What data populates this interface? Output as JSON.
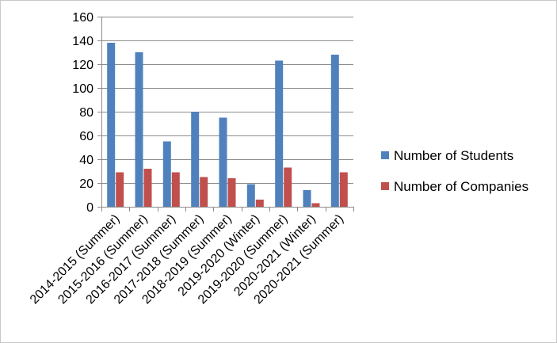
{
  "chart_data": {
    "type": "bar",
    "title": "",
    "xlabel": "",
    "ylabel": "",
    "ylim": [
      0,
      160
    ],
    "yticks": [
      0,
      20,
      40,
      60,
      80,
      100,
      120,
      140,
      160
    ],
    "grid": true,
    "legend_position": "right",
    "categories": [
      "2014-2015 (Summer)",
      "2015-2016 (Summer)",
      "2016-2017 (Summer)",
      "2017-2018 (Summer)",
      "2018-2019 (Summer)",
      "2019-2020 (Winter)",
      "2019-2020 (Summer)",
      "2020-2021 (Winter)",
      "2020-2021 (Summer)"
    ],
    "series": [
      {
        "name": "Number of Students",
        "color": "#4f81bd",
        "values": [
          138,
          130,
          55,
          80,
          75,
          19,
          123,
          14,
          128
        ]
      },
      {
        "name": "Number of Companies",
        "color": "#c0504d",
        "values": [
          29,
          32,
          29,
          25,
          24,
          6,
          33,
          3,
          29
        ]
      }
    ]
  }
}
